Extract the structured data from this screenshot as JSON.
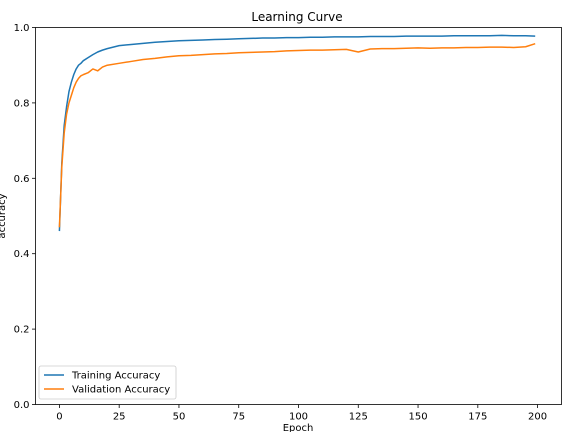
{
  "chart_data": {
    "type": "line",
    "title": "Learning Curve",
    "xlabel": "Epoch",
    "ylabel": "accuracy",
    "xlim": [
      -10,
      210
    ],
    "ylim": [
      0.0,
      1.0
    ],
    "xticks": [
      0,
      25,
      50,
      75,
      100,
      125,
      150,
      175,
      200
    ],
    "yticks": [
      0.0,
      0.2,
      0.4,
      0.6,
      0.8,
      1.0
    ],
    "ytick_labels": [
      "0.0",
      "0.2",
      "0.4",
      "0.6",
      "0.8",
      "1.0"
    ],
    "grid": false,
    "legend_position": "lower-left",
    "series": [
      {
        "name": "Training Accuracy",
        "color": "#1f77b4",
        "x": [
          0,
          1,
          2,
          3,
          4,
          5,
          6,
          7,
          8,
          9,
          10,
          12,
          14,
          16,
          18,
          20,
          25,
          30,
          35,
          40,
          45,
          50,
          55,
          60,
          65,
          70,
          75,
          80,
          85,
          90,
          95,
          100,
          105,
          110,
          115,
          120,
          125,
          130,
          135,
          140,
          145,
          150,
          155,
          160,
          165,
          170,
          175,
          180,
          185,
          190,
          195,
          199
        ],
        "y": [
          0.46,
          0.64,
          0.74,
          0.79,
          0.83,
          0.855,
          0.875,
          0.89,
          0.9,
          0.905,
          0.912,
          0.92,
          0.928,
          0.935,
          0.94,
          0.944,
          0.952,
          0.955,
          0.958,
          0.961,
          0.963,
          0.965,
          0.966,
          0.967,
          0.968,
          0.969,
          0.97,
          0.971,
          0.972,
          0.972,
          0.973,
          0.973,
          0.974,
          0.974,
          0.975,
          0.975,
          0.975,
          0.976,
          0.976,
          0.976,
          0.977,
          0.977,
          0.977,
          0.977,
          0.978,
          0.978,
          0.978,
          0.978,
          0.979,
          0.978,
          0.978,
          0.977
        ]
      },
      {
        "name": "Validation Accuracy",
        "color": "#ff7f0e",
        "x": [
          0,
          1,
          2,
          3,
          4,
          5,
          6,
          7,
          8,
          9,
          10,
          12,
          14,
          16,
          18,
          20,
          25,
          30,
          35,
          40,
          45,
          50,
          55,
          60,
          65,
          70,
          75,
          80,
          85,
          90,
          95,
          100,
          105,
          110,
          115,
          120,
          125,
          130,
          135,
          140,
          145,
          150,
          155,
          160,
          165,
          170,
          175,
          180,
          185,
          190,
          195,
          199
        ],
        "y": [
          0.47,
          0.63,
          0.72,
          0.77,
          0.8,
          0.82,
          0.84,
          0.855,
          0.865,
          0.872,
          0.875,
          0.88,
          0.89,
          0.885,
          0.895,
          0.9,
          0.905,
          0.91,
          0.915,
          0.918,
          0.922,
          0.925,
          0.926,
          0.928,
          0.93,
          0.931,
          0.933,
          0.934,
          0.935,
          0.936,
          0.938,
          0.939,
          0.94,
          0.94,
          0.941,
          0.942,
          0.935,
          0.943,
          0.944,
          0.944,
          0.945,
          0.946,
          0.945,
          0.946,
          0.946,
          0.947,
          0.947,
          0.948,
          0.948,
          0.947,
          0.949,
          0.957
        ]
      }
    ]
  }
}
